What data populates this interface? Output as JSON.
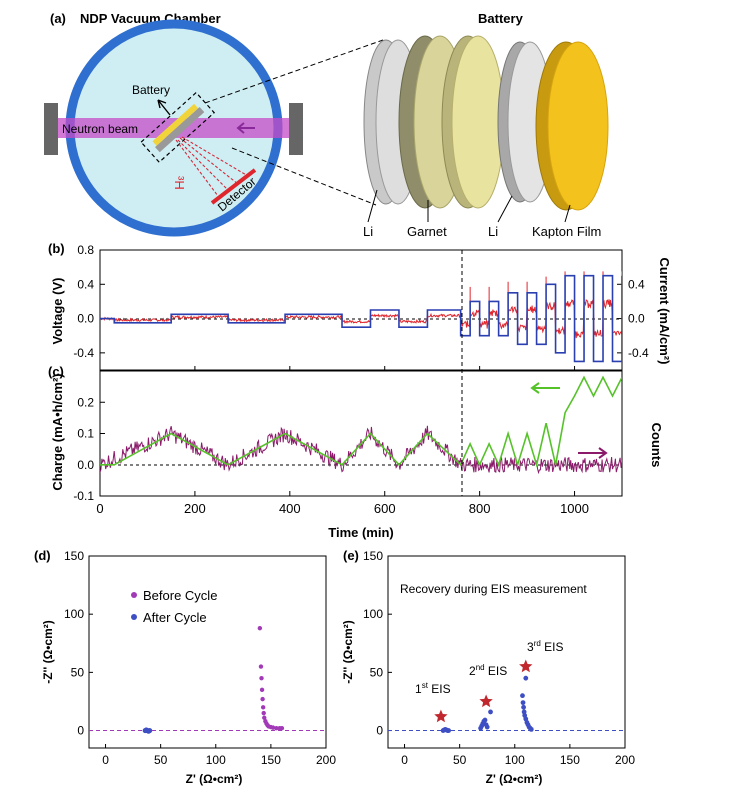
{
  "panel_a": {
    "label": "(a)",
    "chamber_title": "NDP Vacuum Chamber",
    "battery_title": "Battery",
    "battery_label": "Battery",
    "beam_label": "Neutron beam",
    "isotope_label": "³H",
    "detector_label": "Detector",
    "layers": [
      "Li",
      "Garnet",
      "Li",
      "Kapton Film"
    ],
    "colors": {
      "chamber_ring": "#2f6fcf",
      "chamber_fill": "#cfeef3",
      "beam": "#c64bc8",
      "kapton": "#f4c21c",
      "garnet": "#e9e3a0",
      "li": "#d6d6d6",
      "detector": "#e0262d"
    }
  },
  "panel_b": {
    "label": "(b)",
    "ylabel_left": "Voltage (V)",
    "ylabel_right": "Current (mA/cm²)",
    "left_ticks": [
      "0.8",
      "0.4",
      "0.0",
      "-0.4"
    ],
    "right_ticks": [
      "0.4",
      "0.0",
      "-0.4"
    ],
    "colors": {
      "voltage": "#e0262d",
      "current": "#2a3fb0"
    }
  },
  "panel_c": {
    "label": "(c)",
    "ylabel_left": "Charge (mA•h/cm²)",
    "ylabel_right": "Counts",
    "left_ticks": [
      "0.2",
      "0.1",
      "0.0",
      "-0.1"
    ],
    "x_ticks": [
      "0",
      "200",
      "400",
      "600",
      "800",
      "1000"
    ],
    "xlabel": "Time (min)",
    "colors": {
      "charge": "#56c22a",
      "counts": "#8b1a6b"
    }
  },
  "panel_d": {
    "label": "(d)",
    "legend": [
      "Before Cycle",
      "After Cycle"
    ],
    "xlabel": "Z' (Ω•cm²)",
    "ylabel": "-Z'' (Ω•cm²)",
    "x_ticks": [
      "0",
      "50",
      "100",
      "150",
      "200"
    ],
    "y_ticks": [
      "150",
      "100",
      "50",
      "0"
    ],
    "colors": {
      "before": "#a23ab8",
      "after": "#3e4fc4"
    }
  },
  "panel_e": {
    "label": "(e)",
    "title": "Recovery during EIS measurement",
    "eis_labels": [
      {
        "n": "1",
        "sup": "st",
        "t": " EIS"
      },
      {
        "n": "2",
        "sup": "nd",
        "t": " EIS"
      },
      {
        "n": "3",
        "sup": "rd",
        "t": " EIS"
      }
    ],
    "xlabel": "Z' (Ω•cm²)",
    "ylabel": "-Z'' (Ω•cm²)",
    "x_ticks": [
      "0",
      "50",
      "100",
      "150",
      "200"
    ],
    "y_ticks": [
      "150",
      "100",
      "50",
      "0"
    ],
    "colors": {
      "points": "#3e4fc4",
      "star": "#c0282e"
    }
  },
  "chart_data": [
    {
      "type": "line",
      "title": "(b)",
      "xlabel": "Time (min)",
      "ylabel": "Voltage (V)",
      "y2label": "Current (mA/cm²)",
      "xlim": [
        0,
        1100
      ],
      "ylim": [
        -0.6,
        0.8
      ],
      "y2lim": [
        -0.6,
        0.8
      ],
      "series": [
        {
          "name": "Current",
          "axis": "right",
          "steps": [
            [
              0,
              0
            ],
            [
              30,
              -0.05
            ],
            [
              150,
              0.05
            ],
            [
              270,
              -0.05
            ],
            [
              390,
              0.05
            ],
            [
              510,
              -0.1
            ],
            [
              570,
              0.1
            ],
            [
              630,
              -0.1
            ],
            [
              690,
              0.1
            ],
            [
              760,
              -0.2
            ],
            [
              780,
              0.2
            ],
            [
              800,
              -0.2
            ],
            [
              820,
              0.2
            ],
            [
              840,
              -0.2
            ],
            [
              860,
              0.3
            ],
            [
              880,
              -0.3
            ],
            [
              900,
              0.3
            ],
            [
              920,
              -0.3
            ],
            [
              940,
              0.4
            ],
            [
              960,
              -0.4
            ],
            [
              980,
              0.5
            ],
            [
              1000,
              -0.5
            ],
            [
              1020,
              0.5
            ],
            [
              1040,
              -0.5
            ],
            [
              1060,
              0.5
            ],
            [
              1080,
              -0.5
            ],
            [
              1100,
              0.5
            ]
          ]
        },
        {
          "name": "Voltage",
          "axis": "left",
          "approx_range": [
            -0.1,
            0.6
          ]
        }
      ]
    },
    {
      "type": "line",
      "title": "(c)",
      "xlabel": "Time (min)",
      "ylabel": "Charge (mA•h/cm²)",
      "y2label": "Counts",
      "xlim": [
        0,
        1100
      ],
      "ylim": [
        -0.1,
        0.3
      ],
      "series": [
        {
          "name": "Charge",
          "x": [
            0,
            30,
            150,
            270,
            390,
            510,
            570,
            630,
            690,
            760,
            780,
            800,
            820,
            840,
            860,
            880,
            900,
            920,
            940,
            960,
            980,
            1000,
            1020,
            1040,
            1060,
            1080,
            1100
          ],
          "y": [
            0,
            0,
            0.1,
            0,
            0.1,
            0,
            0.1,
            0,
            0.1,
            0,
            0.067,
            0,
            0.067,
            0,
            0.1,
            0,
            0.1,
            0,
            0.133,
            0,
            0.167,
            0.22,
            0.28,
            0.22,
            0.28,
            0.22,
            0.28
          ]
        },
        {
          "name": "Counts",
          "x": [
            0,
            150,
            270,
            390,
            510,
            570,
            630,
            690,
            760,
            1100
          ],
          "y": [
            0,
            0.1,
            0,
            0.1,
            0,
            0.1,
            0,
            0.1,
            0,
            0
          ]
        }
      ]
    },
    {
      "type": "scatter",
      "title": "(d)",
      "xlabel": "Z' (Ω•cm²)",
      "ylabel": "-Z'' (Ω•cm²)",
      "xlim": [
        -15,
        200
      ],
      "ylim": [
        -15,
        150
      ],
      "series": [
        {
          "name": "Before Cycle",
          "x": [
            140,
            141,
            141.5,
            142,
            142.5,
            143,
            143.5,
            144,
            145,
            146,
            147,
            148,
            150,
            152,
            155,
            158,
            160
          ],
          "y": [
            88,
            55,
            45,
            35,
            27,
            20,
            15,
            11,
            8,
            6,
            4.5,
            3.5,
            3,
            2.5,
            2,
            2,
            2
          ]
        },
        {
          "name": "After Cycle",
          "x": [
            36,
            37,
            38,
            39,
            40
          ],
          "y": [
            0,
            0.5,
            0,
            -0.5,
            0
          ]
        }
      ]
    },
    {
      "type": "scatter",
      "title": "(e)",
      "xlabel": "Z' (Ω•cm²)",
      "ylabel": "-Z'' (Ω•cm²)",
      "xlim": [
        -15,
        200
      ],
      "ylim": [
        -15,
        150
      ],
      "series": [
        {
          "name": "1st EIS",
          "x": [
            35,
            36,
            37,
            38,
            39,
            40
          ],
          "y": [
            0,
            0.5,
            1,
            0.5,
            0,
            0
          ]
        },
        {
          "name": "2nd EIS",
          "x": [
            69,
            70,
            71,
            72,
            73,
            74,
            75,
            78
          ],
          "y": [
            2,
            4,
            6,
            8,
            9,
            5,
            3,
            16
          ]
        },
        {
          "name": "3rd EIS",
          "x": [
            107,
            107.5,
            108,
            108.5,
            109,
            110,
            111,
            112,
            113,
            114,
            115,
            110
          ],
          "y": [
            30,
            24,
            20,
            16,
            13,
            10,
            7,
            5,
            3,
            2,
            1,
            45
          ]
        },
        {
          "name": "markers",
          "x": [
            33,
            74,
            110
          ],
          "y": [
            12,
            25,
            55
          ]
        }
      ]
    }
  ]
}
